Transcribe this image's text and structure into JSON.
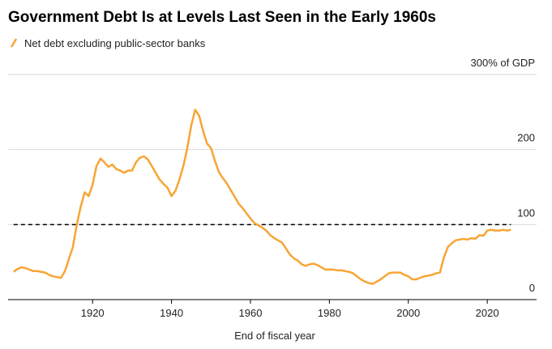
{
  "chart_data": {
    "type": "line",
    "title": "Government Debt Is at Levels Last Seen in the Early 1960s",
    "x_label": "End of fiscal year",
    "x": [
      1900,
      1901,
      1902,
      1903,
      1904,
      1905,
      1906,
      1907,
      1908,
      1909,
      1910,
      1911,
      1912,
      1913,
      1914,
      1915,
      1916,
      1917,
      1918,
      1919,
      1920,
      1921,
      1922,
      1923,
      1924,
      1925,
      1926,
      1927,
      1928,
      1929,
      1930,
      1931,
      1932,
      1933,
      1934,
      1935,
      1936,
      1937,
      1938,
      1939,
      1940,
      1941,
      1942,
      1943,
      1944,
      1945,
      1946,
      1947,
      1948,
      1949,
      1950,
      1951,
      1952,
      1953,
      1954,
      1955,
      1956,
      1957,
      1958,
      1959,
      1960,
      1961,
      1962,
      1963,
      1964,
      1965,
      1966,
      1967,
      1968,
      1969,
      1970,
      1971,
      1972,
      1973,
      1974,
      1975,
      1976,
      1977,
      1978,
      1979,
      1980,
      1981,
      1982,
      1983,
      1984,
      1985,
      1986,
      1987,
      1988,
      1989,
      1990,
      1991,
      1992,
      1993,
      1994,
      1995,
      1996,
      1997,
      1998,
      1999,
      2000,
      2001,
      2002,
      2003,
      2004,
      2005,
      2006,
      2007,
      2008,
      2009,
      2010,
      2011,
      2012,
      2013,
      2014,
      2015,
      2016,
      2017,
      2018,
      2019,
      2020,
      2021,
      2022,
      2023,
      2024,
      2025,
      2026
    ],
    "series": [
      {
        "name": "Net debt excluding public-sector banks",
        "color": "#f7a535",
        "values": [
          37,
          41,
          43,
          42,
          40,
          38,
          38,
          37,
          36,
          33,
          31,
          30,
          29,
          38,
          54,
          70,
          100,
          124,
          143,
          138,
          153,
          178,
          188,
          183,
          177,
          180,
          174,
          172,
          169,
          172,
          172,
          183,
          189,
          191,
          187,
          178,
          169,
          160,
          154,
          149,
          138,
          145,
          160,
          178,
          202,
          232,
          253,
          245,
          225,
          208,
          202,
          185,
          170,
          162,
          155,
          146,
          137,
          128,
          122,
          115,
          108,
          102,
          99,
          96,
          92,
          86,
          82,
          79,
          76,
          68,
          60,
          55,
          52,
          47,
          45,
          47,
          48,
          46,
          43,
          40,
          40,
          40,
          39,
          39,
          38,
          37,
          35,
          31,
          27,
          24,
          22,
          21,
          24,
          27,
          31,
          35,
          36,
          36,
          36,
          33,
          31,
          27,
          27,
          29,
          31,
          32,
          33,
          35,
          36,
          56,
          70,
          75,
          79,
          80,
          81,
          80,
          82,
          81,
          86,
          85,
          92,
          93,
          92,
          92,
          93,
          92,
          93
        ]
      }
    ],
    "xlim": [
      1898.6,
      2032.5
    ],
    "xticks": [
      1920,
      1940,
      1960,
      1980,
      2000,
      2020
    ],
    "ylim": [
      0,
      300
    ],
    "yticks": [
      0,
      100,
      200,
      {
        "value": 300,
        "label": "300% of GDP"
      }
    ],
    "reference_line": 100,
    "grid": true
  }
}
